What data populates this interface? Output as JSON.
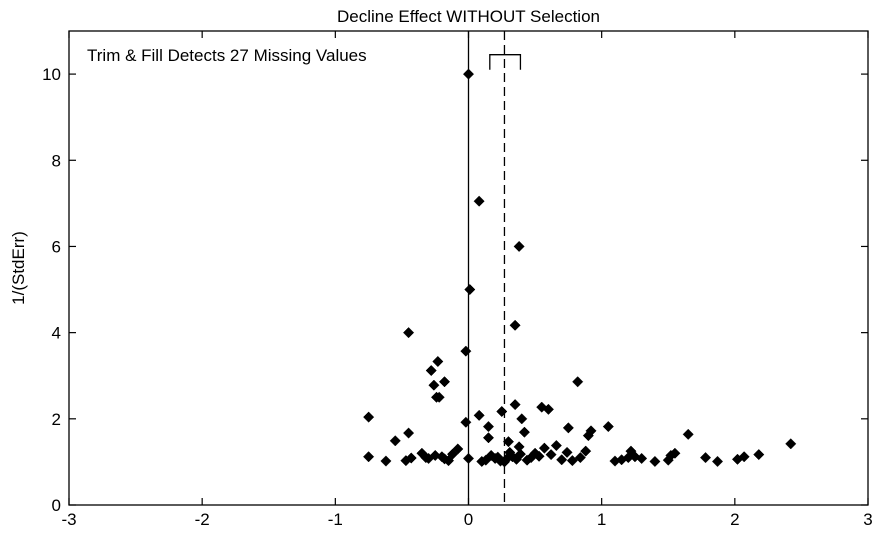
{
  "chart_data": {
    "type": "scatter",
    "title": "Decline Effect WITHOUT Selection",
    "xlabel": "",
    "ylabel": "1/(StdErr)",
    "annotation": "Trim & Fill Detects 27 Missing Values",
    "xlim": [
      -3,
      3
    ],
    "ylim": [
      0,
      11
    ],
    "xticks": [
      -3,
      -2,
      -1,
      0,
      1,
      2,
      3
    ],
    "yticks": [
      0,
      2,
      4,
      6,
      8,
      10
    ],
    "grid": false,
    "reference_line_x": 0,
    "estimate_line_x": 0.27,
    "confidence_interval": [
      0.16,
      0.39
    ],
    "marker": "diamond",
    "marker_color": "#000000",
    "x": [
      0.0,
      0.08,
      0.38,
      0.01,
      0.35,
      -0.45,
      -0.02,
      -0.23,
      -0.28,
      -0.18,
      -0.26,
      -0.24,
      -0.22,
      -0.45,
      -0.75,
      -0.02,
      0.08,
      0.25,
      0.35,
      0.15,
      0.4,
      0.55,
      0.6,
      0.82,
      1.05,
      0.92,
      0.9,
      0.75,
      1.65,
      0.15,
      0.3,
      0.38,
      0.42,
      -0.75,
      -0.62,
      -0.55,
      -0.47,
      -0.43,
      -0.35,
      -0.32,
      -0.3,
      -0.25,
      -0.2,
      -0.18,
      -0.15,
      -0.12,
      -0.08,
      0.0,
      0.1,
      0.13,
      0.17,
      0.2,
      0.22,
      0.24,
      0.27,
      0.29,
      0.31,
      0.33,
      0.36,
      0.39,
      0.44,
      0.47,
      0.5,
      0.53,
      0.57,
      0.62,
      0.66,
      0.7,
      0.74,
      0.78,
      0.84,
      0.88,
      1.1,
      1.15,
      1.2,
      1.22,
      1.25,
      1.3,
      1.4,
      1.5,
      1.52,
      1.55,
      1.78,
      1.87,
      2.02,
      2.07,
      2.18,
      2.42
    ],
    "y": [
      10.0,
      7.05,
      6.0,
      5.0,
      4.17,
      4.0,
      3.57,
      3.33,
      3.12,
      2.86,
      2.78,
      2.5,
      2.5,
      1.67,
      2.04,
      1.92,
      2.08,
      2.17,
      2.33,
      1.82,
      2.0,
      2.27,
      2.22,
      2.86,
      1.82,
      1.72,
      1.61,
      1.79,
      1.64,
      1.56,
      1.47,
      1.35,
      1.69,
      1.12,
      1.02,
      1.49,
      1.03,
      1.09,
      1.2,
      1.1,
      1.08,
      1.15,
      1.12,
      1.07,
      1.03,
      1.18,
      1.3,
      1.08,
      1.01,
      1.04,
      1.15,
      1.08,
      1.11,
      1.02,
      1.0,
      1.08,
      1.22,
      1.12,
      1.06,
      1.18,
      1.04,
      1.1,
      1.2,
      1.13,
      1.32,
      1.17,
      1.38,
      1.05,
      1.22,
      1.03,
      1.1,
      1.25,
      1.02,
      1.05,
      1.1,
      1.25,
      1.12,
      1.08,
      1.01,
      1.04,
      1.15,
      1.2,
      1.1,
      1.01,
      1.06,
      1.12,
      1.17,
      1.42
    ]
  }
}
